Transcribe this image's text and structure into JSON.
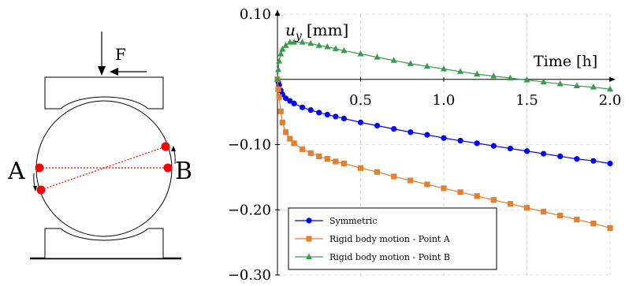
{
  "schematic": {
    "force_label": "F",
    "point_a_label": "A",
    "point_b_label": "B",
    "colors": {
      "points": "#ff0000",
      "lines": "#000000"
    }
  },
  "chart_data": {
    "type": "line",
    "title": "",
    "xlabel": "Time [h]",
    "ylabel": "u_y [mm]",
    "xlim": [
      0,
      2.0
    ],
    "ylim": [
      -0.3,
      0.1
    ],
    "x_ticks": [
      0.5,
      1.0,
      1.5,
      2.0
    ],
    "x_tick_labels": [
      "0.5",
      "1.0",
      "1.5",
      "2.0"
    ],
    "y_ticks": [
      0.1,
      -0.1,
      -0.2,
      -0.3
    ],
    "y_tick_labels": [
      "0.10",
      "−0.10",
      "−0.20",
      "−0.30"
    ],
    "grid": true,
    "legend_position": "bottom-left",
    "series": [
      {
        "name": "Symmetric",
        "color": "#0000ff",
        "marker": "circle",
        "x": [
          0,
          0.005,
          0.01,
          0.02,
          0.03,
          0.05,
          0.075,
          0.1,
          0.15,
          0.2,
          0.25,
          0.3,
          0.35,
          0.4,
          0.5,
          0.6,
          0.7,
          0.8,
          0.9,
          1.0,
          1.1,
          1.2,
          1.3,
          1.4,
          1.5,
          1.6,
          1.7,
          1.8,
          1.9,
          2.0
        ],
        "y": [
          0.0,
          -0.004,
          -0.009,
          -0.017,
          -0.023,
          -0.029,
          -0.033,
          -0.037,
          -0.043,
          -0.047,
          -0.051,
          -0.054,
          -0.057,
          -0.06,
          -0.066,
          -0.071,
          -0.076,
          -0.081,
          -0.085,
          -0.09,
          -0.094,
          -0.098,
          -0.102,
          -0.106,
          -0.11,
          -0.114,
          -0.118,
          -0.122,
          -0.125,
          -0.129
        ]
      },
      {
        "name": "Rigid body motion - Point A",
        "color": "#e08030",
        "marker": "square",
        "x": [
          0,
          0.005,
          0.01,
          0.02,
          0.03,
          0.05,
          0.075,
          0.1,
          0.15,
          0.2,
          0.25,
          0.3,
          0.35,
          0.4,
          0.5,
          0.6,
          0.7,
          0.8,
          0.9,
          1.0,
          1.1,
          1.2,
          1.3,
          1.4,
          1.5,
          1.6,
          1.7,
          1.8,
          1.9,
          2.0
        ],
        "y": [
          0.0,
          -0.015,
          -0.027,
          -0.049,
          -0.066,
          -0.081,
          -0.091,
          -0.098,
          -0.107,
          -0.113,
          -0.118,
          -0.122,
          -0.126,
          -0.129,
          -0.136,
          -0.142,
          -0.149,
          -0.155,
          -0.161,
          -0.167,
          -0.173,
          -0.179,
          -0.185,
          -0.191,
          -0.197,
          -0.203,
          -0.209,
          -0.215,
          -0.221,
          -0.228
        ]
      },
      {
        "name": "Rigid body motion - Point B",
        "color": "#3a9a4f",
        "marker": "triangle",
        "x": [
          0,
          0.005,
          0.01,
          0.02,
          0.03,
          0.05,
          0.075,
          0.1,
          0.15,
          0.2,
          0.25,
          0.3,
          0.35,
          0.4,
          0.5,
          0.6,
          0.7,
          0.8,
          0.9,
          1.0,
          1.1,
          1.2,
          1.3,
          1.4,
          1.5,
          1.6,
          1.7,
          1.8,
          1.9,
          2.0
        ],
        "y": [
          0.0,
          0.015,
          0.028,
          0.039,
          0.046,
          0.052,
          0.057,
          0.057,
          0.057,
          0.055,
          0.052,
          0.05,
          0.047,
          0.044,
          0.039,
          0.034,
          0.029,
          0.024,
          0.02,
          0.016,
          0.012,
          0.008,
          0.005,
          0.002,
          -0.001,
          -0.004,
          -0.007,
          -0.01,
          -0.012,
          -0.015
        ]
      }
    ]
  }
}
